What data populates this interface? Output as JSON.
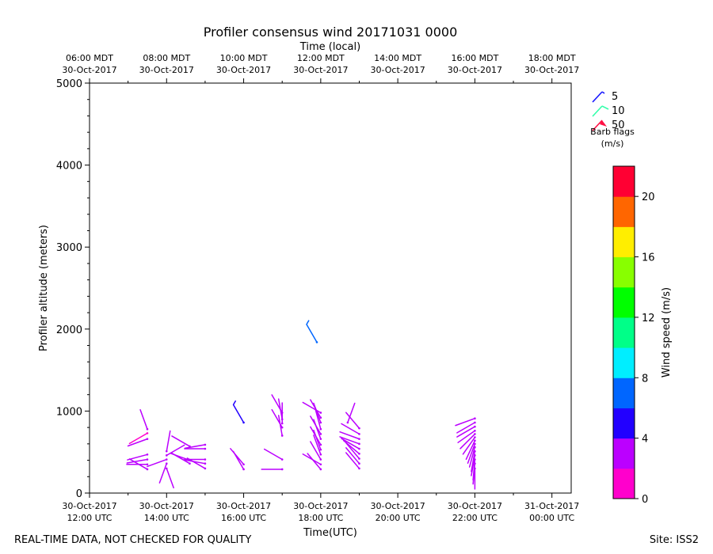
{
  "chart_data": {
    "type": "barbs",
    "title": "Profiler consensus wind 20171031 0000",
    "top_axis_label": "Time (local)",
    "xlabel": "Time(UTC)",
    "ylabel": "Profiler altitude (meters)",
    "x_range_utc_hours": [
      12,
      24.5
    ],
    "ylim": [
      0,
      5000
    ],
    "y_ticks": [
      {
        "value": 0,
        "label": "0"
      },
      {
        "value": 1000,
        "label": "1000"
      },
      {
        "value": 2000,
        "label": "2000"
      },
      {
        "value": 3000,
        "label": "3000"
      },
      {
        "value": 4000,
        "label": "4000"
      },
      {
        "value": 5000,
        "label": "5000"
      }
    ],
    "x_ticks_utc": [
      {
        "value": 12,
        "line1": "30-Oct-2017",
        "line2": "12:00 UTC"
      },
      {
        "value": 14,
        "line1": "30-Oct-2017",
        "line2": "14:00 UTC"
      },
      {
        "value": 16,
        "line1": "30-Oct-2017",
        "line2": "16:00 UTC"
      },
      {
        "value": 18,
        "line1": "30-Oct-2017",
        "line2": "18:00 UTC"
      },
      {
        "value": 20,
        "line1": "30-Oct-2017",
        "line2": "20:00 UTC"
      },
      {
        "value": 22,
        "line1": "30-Oct-2017",
        "line2": "22:00 UTC"
      },
      {
        "value": 24,
        "line1": "31-Oct-2017",
        "line2": "00:00 UTC"
      }
    ],
    "x_ticks_local": [
      {
        "value": 12,
        "line1": "06:00 MDT",
        "line2": "30-Oct-2017"
      },
      {
        "value": 14,
        "line1": "08:00 MDT",
        "line2": "30-Oct-2017"
      },
      {
        "value": 16,
        "line1": "10:00 MDT",
        "line2": "30-Oct-2017"
      },
      {
        "value": 18,
        "line1": "12:00 MDT",
        "line2": "30-Oct-2017"
      },
      {
        "value": 20,
        "line1": "14:00 MDT",
        "line2": "30-Oct-2017"
      },
      {
        "value": 22,
        "line1": "16:00 MDT",
        "line2": "30-Oct-2017"
      },
      {
        "value": 24,
        "line1": "18:00 MDT",
        "line2": "30-Oct-2017"
      }
    ],
    "barb_legend": {
      "title": "Barb flags",
      "units": "(m/s)",
      "entries": [
        {
          "label": "5",
          "color": "#1a1aff"
        },
        {
          "label": "10",
          "color": "#33ffaa"
        },
        {
          "label": "50",
          "color": "#ff1144"
        }
      ]
    },
    "colorbar": {
      "label": "Wind speed (m/s)",
      "range": [
        0,
        22
      ],
      "ticks": [
        {
          "value": 0,
          "label": "0"
        },
        {
          "value": 4,
          "label": "4"
        },
        {
          "value": 8,
          "label": "8"
        },
        {
          "value": 12,
          "label": "12"
        },
        {
          "value": 16,
          "label": "16"
        },
        {
          "value": 20,
          "label": "20"
        }
      ],
      "bins": [
        {
          "from": 0,
          "to": 2,
          "color": "#ff00cc"
        },
        {
          "from": 2,
          "to": 4,
          "color": "#bb00ff"
        },
        {
          "from": 4,
          "to": 6,
          "color": "#2200ff"
        },
        {
          "from": 6,
          "to": 8,
          "color": "#0066ff"
        },
        {
          "from": 8,
          "to": 10,
          "color": "#00eeff"
        },
        {
          "from": 10,
          "to": 12,
          "color": "#00ff88"
        },
        {
          "from": 12,
          "to": 14,
          "color": "#00ff00"
        },
        {
          "from": 14,
          "to": 16,
          "color": "#88ff00"
        },
        {
          "from": 16,
          "to": 18,
          "color": "#ffee00"
        },
        {
          "from": 18,
          "to": 20,
          "color": "#ff6600"
        },
        {
          "from": 20,
          "to": 22,
          "color": "#ff0033"
        }
      ]
    },
    "barbs": [
      {
        "t": 13.5,
        "alt": 780,
        "dir": 340,
        "speed": 2
      },
      {
        "t": 13.5,
        "alt": 730,
        "dir": 240,
        "speed": 1
      },
      {
        "t": 13.5,
        "alt": 660,
        "dir": 250,
        "speed": 3
      },
      {
        "t": 13.5,
        "alt": 470,
        "dir": 255,
        "speed": 3
      },
      {
        "t": 13.5,
        "alt": 410,
        "dir": 260,
        "speed": 3
      },
      {
        "t": 13.5,
        "alt": 350,
        "dir": 270,
        "speed": 3
      },
      {
        "t": 13.5,
        "alt": 290,
        "dir": 300,
        "speed": 2
      },
      {
        "t": 14.0,
        "alt": 510,
        "dir": 10,
        "speed": 3
      },
      {
        "t": 14.0,
        "alt": 460,
        "dir": 60,
        "speed": 3
      },
      {
        "t": 14.0,
        "alt": 410,
        "dir": 250,
        "speed": 2
      },
      {
        "t": 14.0,
        "alt": 360,
        "dir": 200,
        "speed": 3
      },
      {
        "t": 14.0,
        "alt": 300,
        "dir": 160,
        "speed": 2
      },
      {
        "t": 14.6,
        "alt": 570,
        "dir": 300,
        "speed": 3
      },
      {
        "t": 14.6,
        "alt": 400,
        "dir": 290,
        "speed": 3
      },
      {
        "t": 14.6,
        "alt": 360,
        "dir": 300,
        "speed": 2
      },
      {
        "t": 15.0,
        "alt": 590,
        "dir": 260,
        "speed": 3
      },
      {
        "t": 15.0,
        "alt": 540,
        "dir": 270,
        "speed": 3
      },
      {
        "t": 15.0,
        "alt": 410,
        "dir": 270,
        "speed": 2
      },
      {
        "t": 15.0,
        "alt": 360,
        "dir": 280,
        "speed": 2
      },
      {
        "t": 15.0,
        "alt": 300,
        "dir": 300,
        "speed": 3
      },
      {
        "t": 16.0,
        "alt": 860,
        "dir": 330,
        "speed": 5
      },
      {
        "t": 16.0,
        "alt": 350,
        "dir": 320,
        "speed": 3
      },
      {
        "t": 16.0,
        "alt": 290,
        "dir": 330,
        "speed": 2
      },
      {
        "t": 17.0,
        "alt": 800,
        "dir": 330,
        "speed": 3
      },
      {
        "t": 17.0,
        "alt": 410,
        "dir": 300,
        "speed": 2
      },
      {
        "t": 17.0,
        "alt": 290,
        "dir": 270,
        "speed": 2
      },
      {
        "t": 17.0,
        "alt": 980,
        "dir": 330,
        "speed": 2
      },
      {
        "t": 17.0,
        "alt": 900,
        "dir": 350,
        "speed": 3
      },
      {
        "t": 17.0,
        "alt": 850,
        "dir": 0,
        "speed": 3
      },
      {
        "t": 17.0,
        "alt": 700,
        "dir": 350,
        "speed": 3
      },
      {
        "t": 17.9,
        "alt": 1840,
        "dir": 330,
        "speed": 7
      },
      {
        "t": 18.0,
        "alt": 980,
        "dir": 300,
        "speed": 2
      },
      {
        "t": 18.0,
        "alt": 920,
        "dir": 330,
        "speed": 2
      },
      {
        "t": 18.0,
        "alt": 860,
        "dir": 340,
        "speed": 3
      },
      {
        "t": 18.0,
        "alt": 780,
        "dir": 345,
        "speed": 3
      },
      {
        "t": 18.0,
        "alt": 720,
        "dir": 330,
        "speed": 3
      },
      {
        "t": 18.0,
        "alt": 660,
        "dir": 340,
        "speed": 3
      },
      {
        "t": 18.0,
        "alt": 590,
        "dir": 330,
        "speed": 3
      },
      {
        "t": 18.0,
        "alt": 530,
        "dir": 340,
        "speed": 3
      },
      {
        "t": 18.0,
        "alt": 470,
        "dir": 340,
        "speed": 3
      },
      {
        "t": 18.0,
        "alt": 410,
        "dir": 330,
        "speed": 3
      },
      {
        "t": 18.0,
        "alt": 350,
        "dir": 300,
        "speed": 2
      },
      {
        "t": 18.0,
        "alt": 290,
        "dir": 320,
        "speed": 2
      },
      {
        "t": 18.7,
        "alt": 860,
        "dir": 20,
        "speed": 2
      },
      {
        "t": 19.0,
        "alt": 790,
        "dir": 320,
        "speed": 3
      },
      {
        "t": 19.0,
        "alt": 720,
        "dir": 300,
        "speed": 3
      },
      {
        "t": 19.0,
        "alt": 660,
        "dir": 290,
        "speed": 2
      },
      {
        "t": 19.0,
        "alt": 600,
        "dir": 290,
        "speed": 2
      },
      {
        "t": 19.0,
        "alt": 540,
        "dir": 300,
        "speed": 3
      },
      {
        "t": 19.0,
        "alt": 480,
        "dir": 310,
        "speed": 3
      },
      {
        "t": 19.0,
        "alt": 420,
        "dir": 320,
        "speed": 3
      },
      {
        "t": 19.0,
        "alt": 360,
        "dir": 320,
        "speed": 3
      },
      {
        "t": 19.0,
        "alt": 300,
        "dir": 320,
        "speed": 3
      },
      {
        "t": 22.0,
        "alt": 910,
        "dir": 250,
        "speed": 2
      },
      {
        "t": 22.0,
        "alt": 860,
        "dir": 240,
        "speed": 3
      },
      {
        "t": 22.0,
        "alt": 810,
        "dir": 240,
        "speed": 3
      },
      {
        "t": 22.0,
        "alt": 760,
        "dir": 235,
        "speed": 3
      },
      {
        "t": 22.0,
        "alt": 720,
        "dir": 225,
        "speed": 3
      },
      {
        "t": 22.0,
        "alt": 680,
        "dir": 215,
        "speed": 3
      },
      {
        "t": 22.0,
        "alt": 640,
        "dir": 205,
        "speed": 3
      },
      {
        "t": 22.0,
        "alt": 600,
        "dir": 200,
        "speed": 3
      },
      {
        "t": 22.0,
        "alt": 560,
        "dir": 195,
        "speed": 3
      },
      {
        "t": 22.0,
        "alt": 510,
        "dir": 190,
        "speed": 3
      },
      {
        "t": 22.0,
        "alt": 460,
        "dir": 190,
        "speed": 3
      },
      {
        "t": 22.0,
        "alt": 410,
        "dir": 185,
        "speed": 3
      },
      {
        "t": 22.0,
        "alt": 360,
        "dir": 185,
        "speed": 3
      },
      {
        "t": 22.0,
        "alt": 300,
        "dir": 180,
        "speed": 3
      }
    ]
  },
  "footer": {
    "left": "REAL-TIME DATA, NOT CHECKED FOR QUALITY",
    "right": "Site: ISS2"
  }
}
